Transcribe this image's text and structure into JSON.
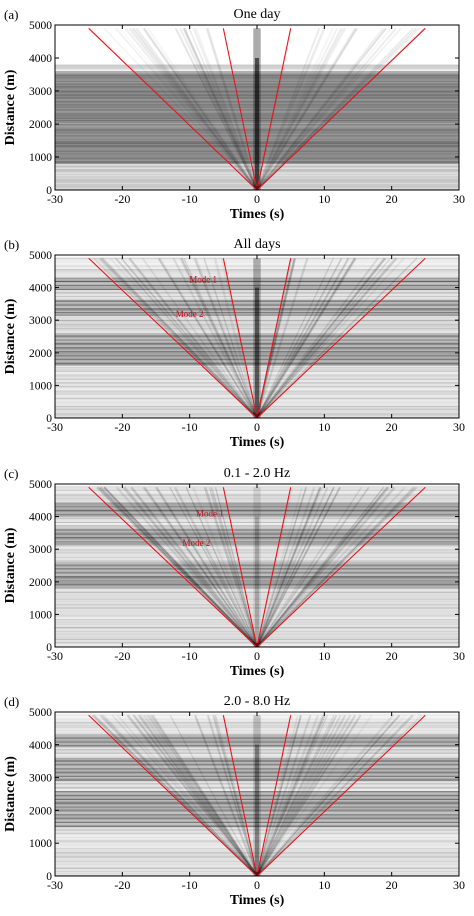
{
  "figure": {
    "xlabel": "Times (s)",
    "ylabel": "Distance (m)",
    "line_color": "#e8141b",
    "label_color": "#c0101a",
    "trace_color": "#000000"
  },
  "chart_data": [
    {
      "type": "line",
      "panel_label": "(a)",
      "title": "One day",
      "xlabel": "Times (s)",
      "ylabel": "Distance (m)",
      "xlim": [
        -30,
        30
      ],
      "ylim": [
        0,
        5000
      ],
      "x_ticks": [
        -30,
        -20,
        -10,
        0,
        10,
        20,
        30
      ],
      "y_ticks": [
        0,
        1000,
        2000,
        3000,
        4000,
        5000
      ],
      "series": [
        {
          "values": [
            {
              "x": 0,
              "y": 0
            },
            {
              "x": -25,
              "y": 4900
            }
          ]
        },
        {
          "values": [
            {
              "x": 0,
              "y": 0
            },
            {
              "x": -5,
              "y": 4900
            }
          ]
        },
        {
          "values": [
            {
              "x": 0,
              "y": 0
            },
            {
              "x": 5,
              "y": 4900
            }
          ]
        },
        {
          "values": [
            {
              "x": 0,
              "y": 0
            },
            {
              "x": 25,
              "y": 4900
            }
          ]
        }
      ],
      "annotations": [],
      "image_density": {
        "dense_bands_m": [
          [
            800,
            3600
          ]
        ],
        "top_fade_m": 3800,
        "center_spike": 0.95,
        "fan": 0.45
      }
    },
    {
      "type": "line",
      "panel_label": "(b)",
      "title": "All days",
      "xlabel": "Times (s)",
      "ylabel": "Distance (m)",
      "xlim": [
        -30,
        30
      ],
      "ylim": [
        0,
        5000
      ],
      "x_ticks": [
        -30,
        -20,
        -10,
        0,
        10,
        20,
        30
      ],
      "y_ticks": [
        0,
        1000,
        2000,
        3000,
        4000,
        5000
      ],
      "series": [
        {
          "values": [
            {
              "x": 0,
              "y": 0
            },
            {
              "x": -25,
              "y": 4900
            }
          ]
        },
        {
          "values": [
            {
              "x": 0,
              "y": 0
            },
            {
              "x": -5,
              "y": 4900
            }
          ]
        },
        {
          "values": [
            {
              "x": 0,
              "y": 0
            },
            {
              "x": 5,
              "y": 4900
            }
          ]
        },
        {
          "values": [
            {
              "x": 0,
              "y": 0
            },
            {
              "x": 25,
              "y": 4900
            }
          ]
        }
      ],
      "annotations": [
        {
          "text": "Mode 1",
          "x": -8,
          "y": 4150
        },
        {
          "text": "Mode 2",
          "x": -10,
          "y": 3100
        }
      ],
      "image_density": {
        "dense_bands_m": [
          [
            3150,
            3650
          ],
          [
            1600,
            2600
          ],
          [
            3900,
            4300
          ]
        ],
        "top_fade_m": 4950,
        "center_spike": 0.8,
        "fan": 0.7
      }
    },
    {
      "type": "line",
      "panel_label": "(c)",
      "title": "0.1 - 2.0 Hz",
      "xlabel": "Times (s)",
      "ylabel": "Distance (m)",
      "xlim": [
        -30,
        30
      ],
      "ylim": [
        0,
        5000
      ],
      "x_ticks": [
        -30,
        -20,
        -10,
        0,
        10,
        20,
        30
      ],
      "y_ticks": [
        0,
        1000,
        2000,
        3000,
        4000,
        5000
      ],
      "series": [
        {
          "values": [
            {
              "x": 0,
              "y": 0
            },
            {
              "x": -25,
              "y": 4900
            }
          ]
        },
        {
          "values": [
            {
              "x": 0,
              "y": 0
            },
            {
              "x": -5,
              "y": 4900
            }
          ]
        },
        {
          "values": [
            {
              "x": 0,
              "y": 0
            },
            {
              "x": 5,
              "y": 4900
            }
          ]
        },
        {
          "values": [
            {
              "x": 0,
              "y": 0
            },
            {
              "x": 25,
              "y": 4900
            }
          ]
        }
      ],
      "annotations": [
        {
          "text": "Mode 1",
          "x": -7,
          "y": 4000
        },
        {
          "text": "Mode 2",
          "x": -9,
          "y": 3100
        }
      ],
      "image_density": {
        "dense_bands_m": [
          [
            3150,
            3650
          ],
          [
            1800,
            2600
          ],
          [
            4000,
            4400
          ]
        ],
        "top_fade_m": 4950,
        "center_spike": 0.3,
        "fan": 0.85
      }
    },
    {
      "type": "line",
      "panel_label": "(d)",
      "title": "2.0 - 8.0 Hz",
      "xlabel": "Times (s)",
      "ylabel": "Distance (m)",
      "xlim": [
        -30,
        30
      ],
      "ylim": [
        0,
        5000
      ],
      "x_ticks": [
        -30,
        -20,
        -10,
        0,
        10,
        20,
        30
      ],
      "y_ticks": [
        0,
        1000,
        2000,
        3000,
        4000,
        5000
      ],
      "series": [
        {
          "values": [
            {
              "x": 0,
              "y": 0
            },
            {
              "x": -25,
              "y": 4900
            }
          ]
        },
        {
          "values": [
            {
              "x": 0,
              "y": 0
            },
            {
              "x": -5,
              "y": 4900
            }
          ]
        },
        {
          "values": [
            {
              "x": 0,
              "y": 0
            },
            {
              "x": 5,
              "y": 4900
            }
          ]
        },
        {
          "values": [
            {
              "x": 0,
              "y": 0
            },
            {
              "x": 25,
              "y": 4900
            }
          ]
        }
      ],
      "annotations": [],
      "image_density": {
        "dense_bands_m": [
          [
            2900,
            3600
          ],
          [
            1500,
            2600
          ],
          [
            3900,
            4300
          ]
        ],
        "top_fade_m": 4950,
        "center_spike": 0.55,
        "fan": 0.7
      }
    }
  ]
}
